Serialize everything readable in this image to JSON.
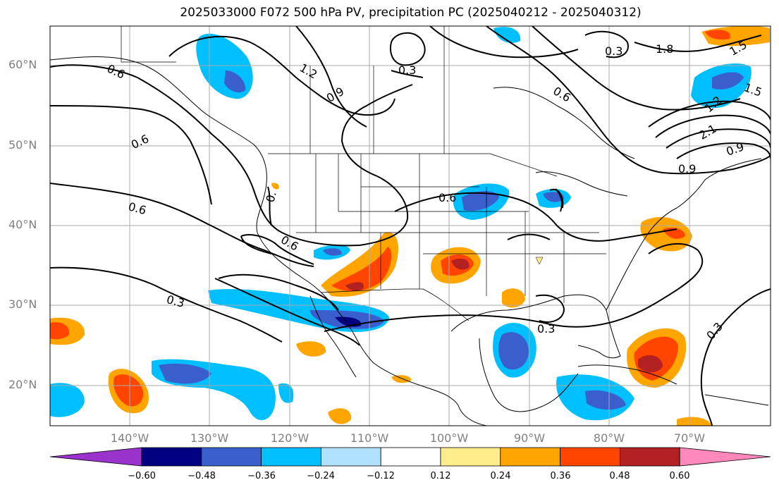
{
  "title": "2025033000 F072 500 hPa PV, precipitation PC (2025040212 - 2025040312)",
  "lat_labels": [
    "60°N",
    "50°N",
    "40°N",
    "30°N",
    "20°N"
  ],
  "lon_labels": [
    "140°W",
    "130°W",
    "120°W",
    "110°W",
    "100°W",
    "90°W",
    "80°W",
    "70°W"
  ],
  "contour_labels": [
    "0.6",
    "0.6",
    "0.6",
    "0.6",
    "0.6",
    "0.6",
    "0.3",
    "0.3",
    "0.3",
    "0.3",
    "0.3",
    "0.9",
    "0.9",
    "0.9",
    "1.2",
    "1.2",
    "1.5",
    "1.5",
    "1.8",
    "2.1",
    "0."
  ],
  "colorbar": {
    "ticks": [
      "−0.60",
      "−0.48",
      "−0.36",
      "−0.24",
      "−0.12",
      "0.12",
      "0.24",
      "0.36",
      "0.48",
      "0.60"
    ],
    "colors": {
      "under": "#9933cc",
      "b1": "#000080",
      "b2": "#3a5fcd",
      "b3": "#00bfff",
      "b4": "#b0e2ff",
      "zero": "#ffffff",
      "p1": "#ffec8b",
      "p2": "#ffa500",
      "p3": "#ff4500",
      "p4": "#b22222",
      "over": "#ff88bb"
    }
  }
}
